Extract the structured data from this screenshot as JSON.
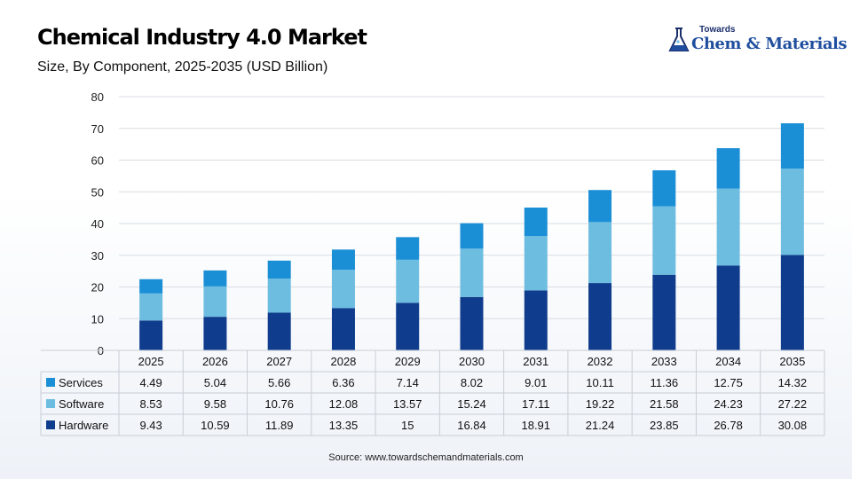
{
  "header": {
    "title": "Chemical Industry 4.0 Market",
    "subtitle": "Size, By Component, 2025-2035 (USD Billion)"
  },
  "logo": {
    "small": "Towards",
    "brand": "Chem & Materials"
  },
  "source": "Source: www.towardschemandmaterials.com",
  "colors": {
    "Services": "#1a8fd6",
    "Software": "#6dbde0",
    "Hardware": "#0f3c8c"
  },
  "chart_data": {
    "type": "bar",
    "stacked": true,
    "title": "Chemical Industry 4.0 Market",
    "subtitle": "Size, By Component, 2025-2035 (USD Billion)",
    "categories": [
      "2025",
      "2026",
      "2027",
      "2028",
      "2029",
      "2030",
      "2031",
      "2032",
      "2033",
      "2034",
      "2035"
    ],
    "series": [
      {
        "name": "Services",
        "values": [
          4.49,
          5.04,
          5.66,
          6.36,
          7.14,
          8.02,
          9.01,
          10.11,
          11.36,
          12.75,
          14.32
        ]
      },
      {
        "name": "Software",
        "values": [
          8.53,
          9.58,
          10.76,
          12.08,
          13.57,
          15.24,
          17.11,
          19.22,
          21.58,
          24.23,
          27.22
        ]
      },
      {
        "name": "Hardware",
        "values": [
          9.43,
          10.59,
          11.89,
          13.35,
          15,
          16.84,
          18.91,
          21.24,
          23.85,
          26.78,
          30.08
        ]
      }
    ],
    "yticks": [
      "0",
      "10",
      "20",
      "30",
      "40",
      "50",
      "60",
      "70",
      "80"
    ],
    "ylim": [
      0,
      80
    ],
    "grid": true,
    "legend": "data-table-left"
  }
}
